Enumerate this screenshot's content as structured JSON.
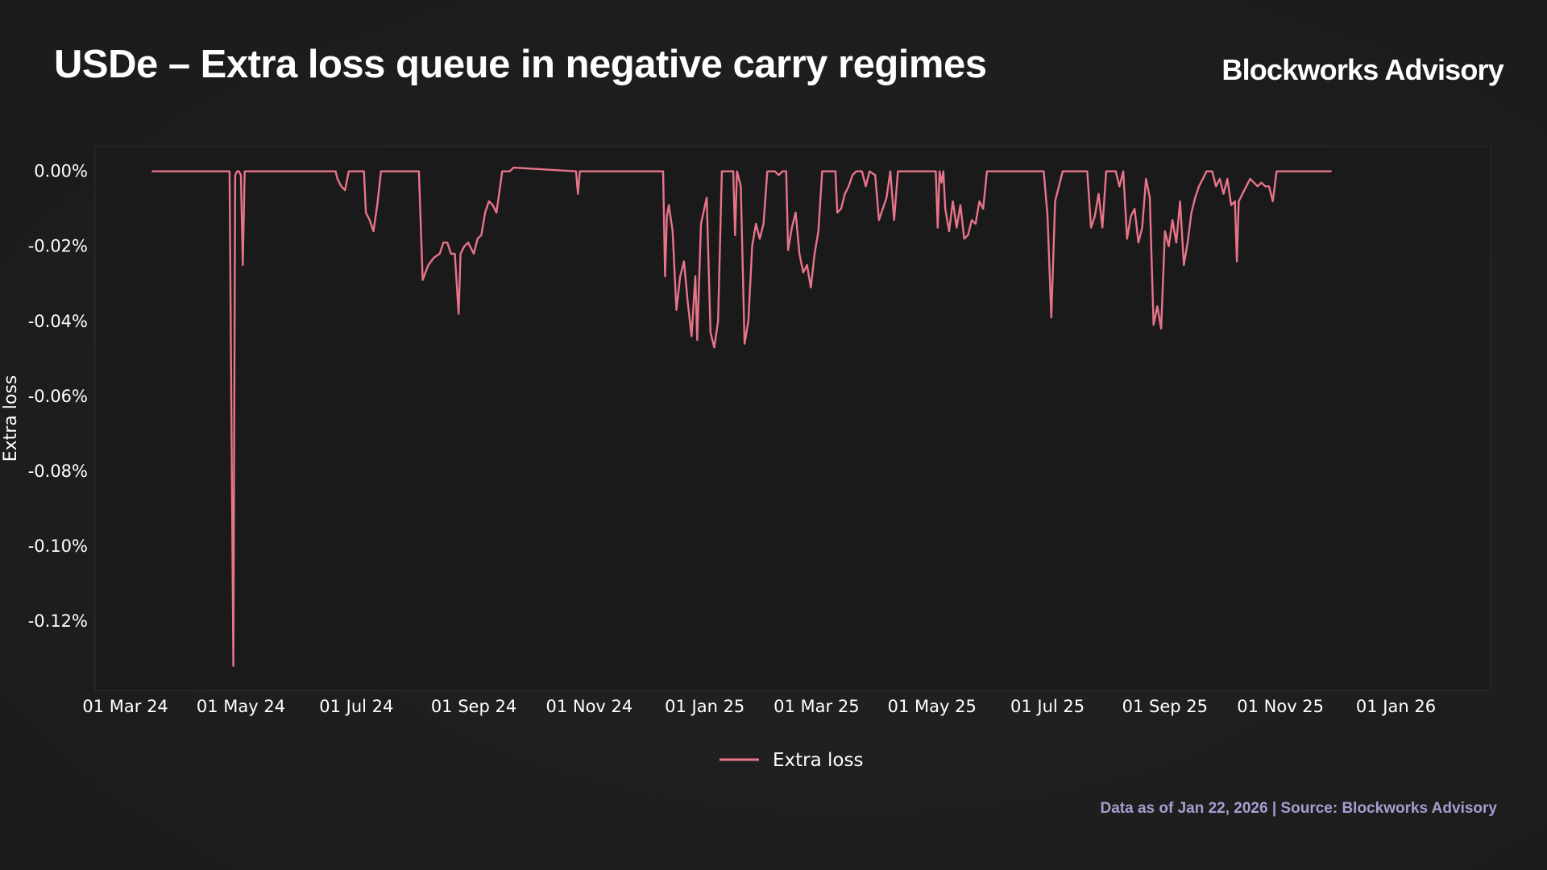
{
  "header": {
    "title": "USDe – Extra loss queue in negative carry regimes",
    "brand": "Blockworks Advisory"
  },
  "footer": {
    "note": "Data as of Jan 22, 2026 | Source: Blockworks Advisory"
  },
  "colors": {
    "background": "#1d1d1d",
    "series": "#e8748a",
    "footer_text": "#a39ed0",
    "text": "#ffffff"
  },
  "chart_data": {
    "type": "line",
    "title": "USDe – Extra loss queue in negative carry regimes",
    "ylabel": "Extra loss",
    "xlabel": "",
    "y_unit": "%",
    "ylim": [
      -0.1385,
      0.0066
    ],
    "xlim": [
      "2024-02-14",
      "2026-02-20"
    ],
    "y_ticks": [
      {
        "value": 0.0,
        "label": "0.00%"
      },
      {
        "value": -0.02,
        "label": "-0.02%"
      },
      {
        "value": -0.04,
        "label": "-0.04%"
      },
      {
        "value": -0.06,
        "label": "-0.06%"
      },
      {
        "value": -0.08,
        "label": "-0.08%"
      },
      {
        "value": -0.1,
        "label": "-0.10%"
      },
      {
        "value": -0.12,
        "label": "-0.12%"
      }
    ],
    "x_ticks": [
      {
        "date": "2024-03-01",
        "label": "01 Mar 24"
      },
      {
        "date": "2024-05-01",
        "label": "01 May 24"
      },
      {
        "date": "2024-07-01",
        "label": "01 Jul 24"
      },
      {
        "date": "2024-09-01",
        "label": "01 Sep 24"
      },
      {
        "date": "2024-11-01",
        "label": "01 Nov 24"
      },
      {
        "date": "2025-01-01",
        "label": "01 Jan 25"
      },
      {
        "date": "2025-03-01",
        "label": "01 Mar 25"
      },
      {
        "date": "2025-05-01",
        "label": "01 May 25"
      },
      {
        "date": "2025-07-01",
        "label": "01 Jul 25"
      },
      {
        "date": "2025-09-01",
        "label": "01 Sep 25"
      },
      {
        "date": "2025-11-01",
        "label": "01 Nov 25"
      },
      {
        "date": "2026-01-01",
        "label": "01 Jan 26"
      }
    ],
    "legend": {
      "position": "bottom-center"
    },
    "grid": false,
    "series": [
      {
        "name": "Extra loss",
        "color": "#e8748a",
        "points": [
          [
            "2024-03-15",
            0.0
          ],
          [
            "2024-04-25",
            0.0
          ],
          [
            "2024-04-27",
            -0.132
          ],
          [
            "2024-04-28",
            -0.001
          ],
          [
            "2024-04-29",
            0.0
          ],
          [
            "2024-04-30",
            0.0
          ],
          [
            "2024-05-01",
            -0.001
          ],
          [
            "2024-05-02",
            -0.025
          ],
          [
            "2024-05-03",
            0.0
          ],
          [
            "2024-06-20",
            0.0
          ],
          [
            "2024-06-21",
            -0.002
          ],
          [
            "2024-06-23",
            -0.004
          ],
          [
            "2024-06-25",
            -0.005
          ],
          [
            "2024-06-27",
            0.0
          ],
          [
            "2024-07-05",
            0.0
          ],
          [
            "2024-07-06",
            -0.011
          ],
          [
            "2024-07-08",
            -0.013
          ],
          [
            "2024-07-10",
            -0.016
          ],
          [
            "2024-07-12",
            -0.009
          ],
          [
            "2024-07-14",
            0.0
          ],
          [
            "2024-08-03",
            0.0
          ],
          [
            "2024-08-05",
            -0.029
          ],
          [
            "2024-08-08",
            -0.025
          ],
          [
            "2024-08-11",
            -0.023
          ],
          [
            "2024-08-14",
            -0.022
          ],
          [
            "2024-08-16",
            -0.019
          ],
          [
            "2024-08-18",
            -0.019
          ],
          [
            "2024-08-20",
            -0.022
          ],
          [
            "2024-08-22",
            -0.022
          ],
          [
            "2024-08-24",
            -0.038
          ],
          [
            "2024-08-25",
            -0.022
          ],
          [
            "2024-08-27",
            -0.02
          ],
          [
            "2024-08-29",
            -0.019
          ],
          [
            "2024-09-01",
            -0.022
          ],
          [
            "2024-09-03",
            -0.018
          ],
          [
            "2024-09-05",
            -0.017
          ],
          [
            "2024-09-07",
            -0.011
          ],
          [
            "2024-09-09",
            -0.008
          ],
          [
            "2024-09-11",
            -0.009
          ],
          [
            "2024-09-13",
            -0.011
          ],
          [
            "2024-09-16",
            0.0
          ],
          [
            "2024-09-20",
            0.0
          ],
          [
            "2024-09-22",
            0.001
          ],
          [
            "2024-10-25",
            0.0
          ],
          [
            "2024-10-26",
            -0.006
          ],
          [
            "2024-10-27",
            0.0
          ],
          [
            "2024-12-10",
            0.0
          ],
          [
            "2024-12-11",
            -0.028
          ],
          [
            "2024-12-12",
            -0.012
          ],
          [
            "2024-12-13",
            -0.009
          ],
          [
            "2024-12-15",
            -0.016
          ],
          [
            "2024-12-17",
            -0.037
          ],
          [
            "2024-12-19",
            -0.028
          ],
          [
            "2024-12-21",
            -0.024
          ],
          [
            "2024-12-23",
            -0.035
          ],
          [
            "2024-12-25",
            -0.044
          ],
          [
            "2024-12-27",
            -0.028
          ],
          [
            "2024-12-28",
            -0.045
          ],
          [
            "2024-12-30",
            -0.014
          ],
          [
            "2025-01-02",
            -0.007
          ],
          [
            "2025-01-04",
            -0.043
          ],
          [
            "2025-01-06",
            -0.047
          ],
          [
            "2025-01-08",
            -0.04
          ],
          [
            "2025-01-10",
            0.0
          ],
          [
            "2025-01-16",
            0.0
          ],
          [
            "2025-01-17",
            -0.017
          ],
          [
            "2025-01-18",
            0.0
          ],
          [
            "2025-01-20",
            -0.004
          ],
          [
            "2025-01-22",
            -0.046
          ],
          [
            "2025-01-24",
            -0.04
          ],
          [
            "2025-01-26",
            -0.02
          ],
          [
            "2025-01-28",
            -0.014
          ],
          [
            "2025-01-30",
            -0.018
          ],
          [
            "2025-02-01",
            -0.014
          ],
          [
            "2025-02-03",
            0.0
          ],
          [
            "2025-02-07",
            0.0
          ],
          [
            "2025-02-09",
            -0.001
          ],
          [
            "2025-02-11",
            0.0
          ],
          [
            "2025-02-13",
            0.0
          ],
          [
            "2025-02-14",
            -0.021
          ],
          [
            "2025-02-16",
            -0.015
          ],
          [
            "2025-02-18",
            -0.011
          ],
          [
            "2025-02-20",
            -0.022
          ],
          [
            "2025-02-22",
            -0.027
          ],
          [
            "2025-02-24",
            -0.025
          ],
          [
            "2025-02-26",
            -0.031
          ],
          [
            "2025-02-28",
            -0.022
          ],
          [
            "2025-03-02",
            -0.016
          ],
          [
            "2025-03-04",
            0.0
          ],
          [
            "2025-03-11",
            0.0
          ],
          [
            "2025-03-12",
            -0.011
          ],
          [
            "2025-03-14",
            -0.01
          ],
          [
            "2025-03-16",
            -0.006
          ],
          [
            "2025-03-18",
            -0.004
          ],
          [
            "2025-03-20",
            -0.001
          ],
          [
            "2025-03-22",
            0.0
          ],
          [
            "2025-03-25",
            0.0
          ],
          [
            "2025-03-27",
            -0.004
          ],
          [
            "2025-03-29",
            0.0
          ],
          [
            "2025-04-01",
            -0.001
          ],
          [
            "2025-04-03",
            -0.013
          ],
          [
            "2025-04-05",
            -0.01
          ],
          [
            "2025-04-07",
            -0.007
          ],
          [
            "2025-04-09",
            0.0
          ],
          [
            "2025-04-11",
            -0.013
          ],
          [
            "2025-04-13",
            0.0
          ],
          [
            "2025-05-03",
            0.0
          ],
          [
            "2025-05-04",
            -0.015
          ],
          [
            "2025-05-05",
            0.0
          ],
          [
            "2025-05-06",
            -0.003
          ],
          [
            "2025-05-07",
            0.0
          ],
          [
            "2025-05-08",
            -0.01
          ],
          [
            "2025-05-10",
            -0.016
          ],
          [
            "2025-05-12",
            -0.008
          ],
          [
            "2025-05-14",
            -0.015
          ],
          [
            "2025-05-16",
            -0.009
          ],
          [
            "2025-05-18",
            -0.018
          ],
          [
            "2025-05-20",
            -0.017
          ],
          [
            "2025-05-22",
            -0.013
          ],
          [
            "2025-05-24",
            -0.014
          ],
          [
            "2025-05-26",
            -0.008
          ],
          [
            "2025-05-28",
            -0.01
          ],
          [
            "2025-05-30",
            0.0
          ],
          [
            "2025-06-29",
            0.0
          ],
          [
            "2025-07-01",
            -0.012
          ],
          [
            "2025-07-03",
            -0.039
          ],
          [
            "2025-07-05",
            -0.008
          ],
          [
            "2025-07-07",
            -0.004
          ],
          [
            "2025-07-09",
            0.0
          ],
          [
            "2025-07-22",
            0.0
          ],
          [
            "2025-07-24",
            -0.015
          ],
          [
            "2025-07-26",
            -0.012
          ],
          [
            "2025-07-28",
            -0.006
          ],
          [
            "2025-07-30",
            -0.015
          ],
          [
            "2025-08-01",
            0.0
          ],
          [
            "2025-08-06",
            0.0
          ],
          [
            "2025-08-08",
            -0.004
          ],
          [
            "2025-08-10",
            0.0
          ],
          [
            "2025-08-12",
            -0.018
          ],
          [
            "2025-08-14",
            -0.012
          ],
          [
            "2025-08-16",
            -0.01
          ],
          [
            "2025-08-18",
            -0.019
          ],
          [
            "2025-08-20",
            -0.015
          ],
          [
            "2025-08-22",
            -0.002
          ],
          [
            "2025-08-24",
            -0.007
          ],
          [
            "2025-08-26",
            -0.041
          ],
          [
            "2025-08-28",
            -0.036
          ],
          [
            "2025-08-30",
            -0.042
          ],
          [
            "2025-09-01",
            -0.016
          ],
          [
            "2025-09-03",
            -0.02
          ],
          [
            "2025-09-05",
            -0.013
          ],
          [
            "2025-09-07",
            -0.019
          ],
          [
            "2025-09-09",
            -0.008
          ],
          [
            "2025-09-11",
            -0.025
          ],
          [
            "2025-09-13",
            -0.019
          ],
          [
            "2025-09-15",
            -0.011
          ],
          [
            "2025-09-17",
            -0.007
          ],
          [
            "2025-09-19",
            -0.004
          ],
          [
            "2025-09-21",
            -0.002
          ],
          [
            "2025-09-23",
            0.0
          ],
          [
            "2025-09-26",
            0.0
          ],
          [
            "2025-09-28",
            -0.004
          ],
          [
            "2025-09-30",
            -0.002
          ],
          [
            "2025-10-02",
            -0.006
          ],
          [
            "2025-10-04",
            -0.002
          ],
          [
            "2025-10-06",
            -0.009
          ],
          [
            "2025-10-08",
            -0.008
          ],
          [
            "2025-10-09",
            -0.024
          ],
          [
            "2025-10-10",
            -0.008
          ],
          [
            "2025-10-12",
            -0.006
          ],
          [
            "2025-10-14",
            -0.004
          ],
          [
            "2025-10-16",
            -0.002
          ],
          [
            "2025-10-18",
            -0.003
          ],
          [
            "2025-10-20",
            -0.004
          ],
          [
            "2025-10-22",
            -0.003
          ],
          [
            "2025-10-24",
            -0.004
          ],
          [
            "2025-10-26",
            -0.004
          ],
          [
            "2025-10-28",
            -0.008
          ],
          [
            "2025-10-30",
            0.0
          ],
          [
            "2025-11-28",
            0.0
          ]
        ]
      }
    ]
  }
}
